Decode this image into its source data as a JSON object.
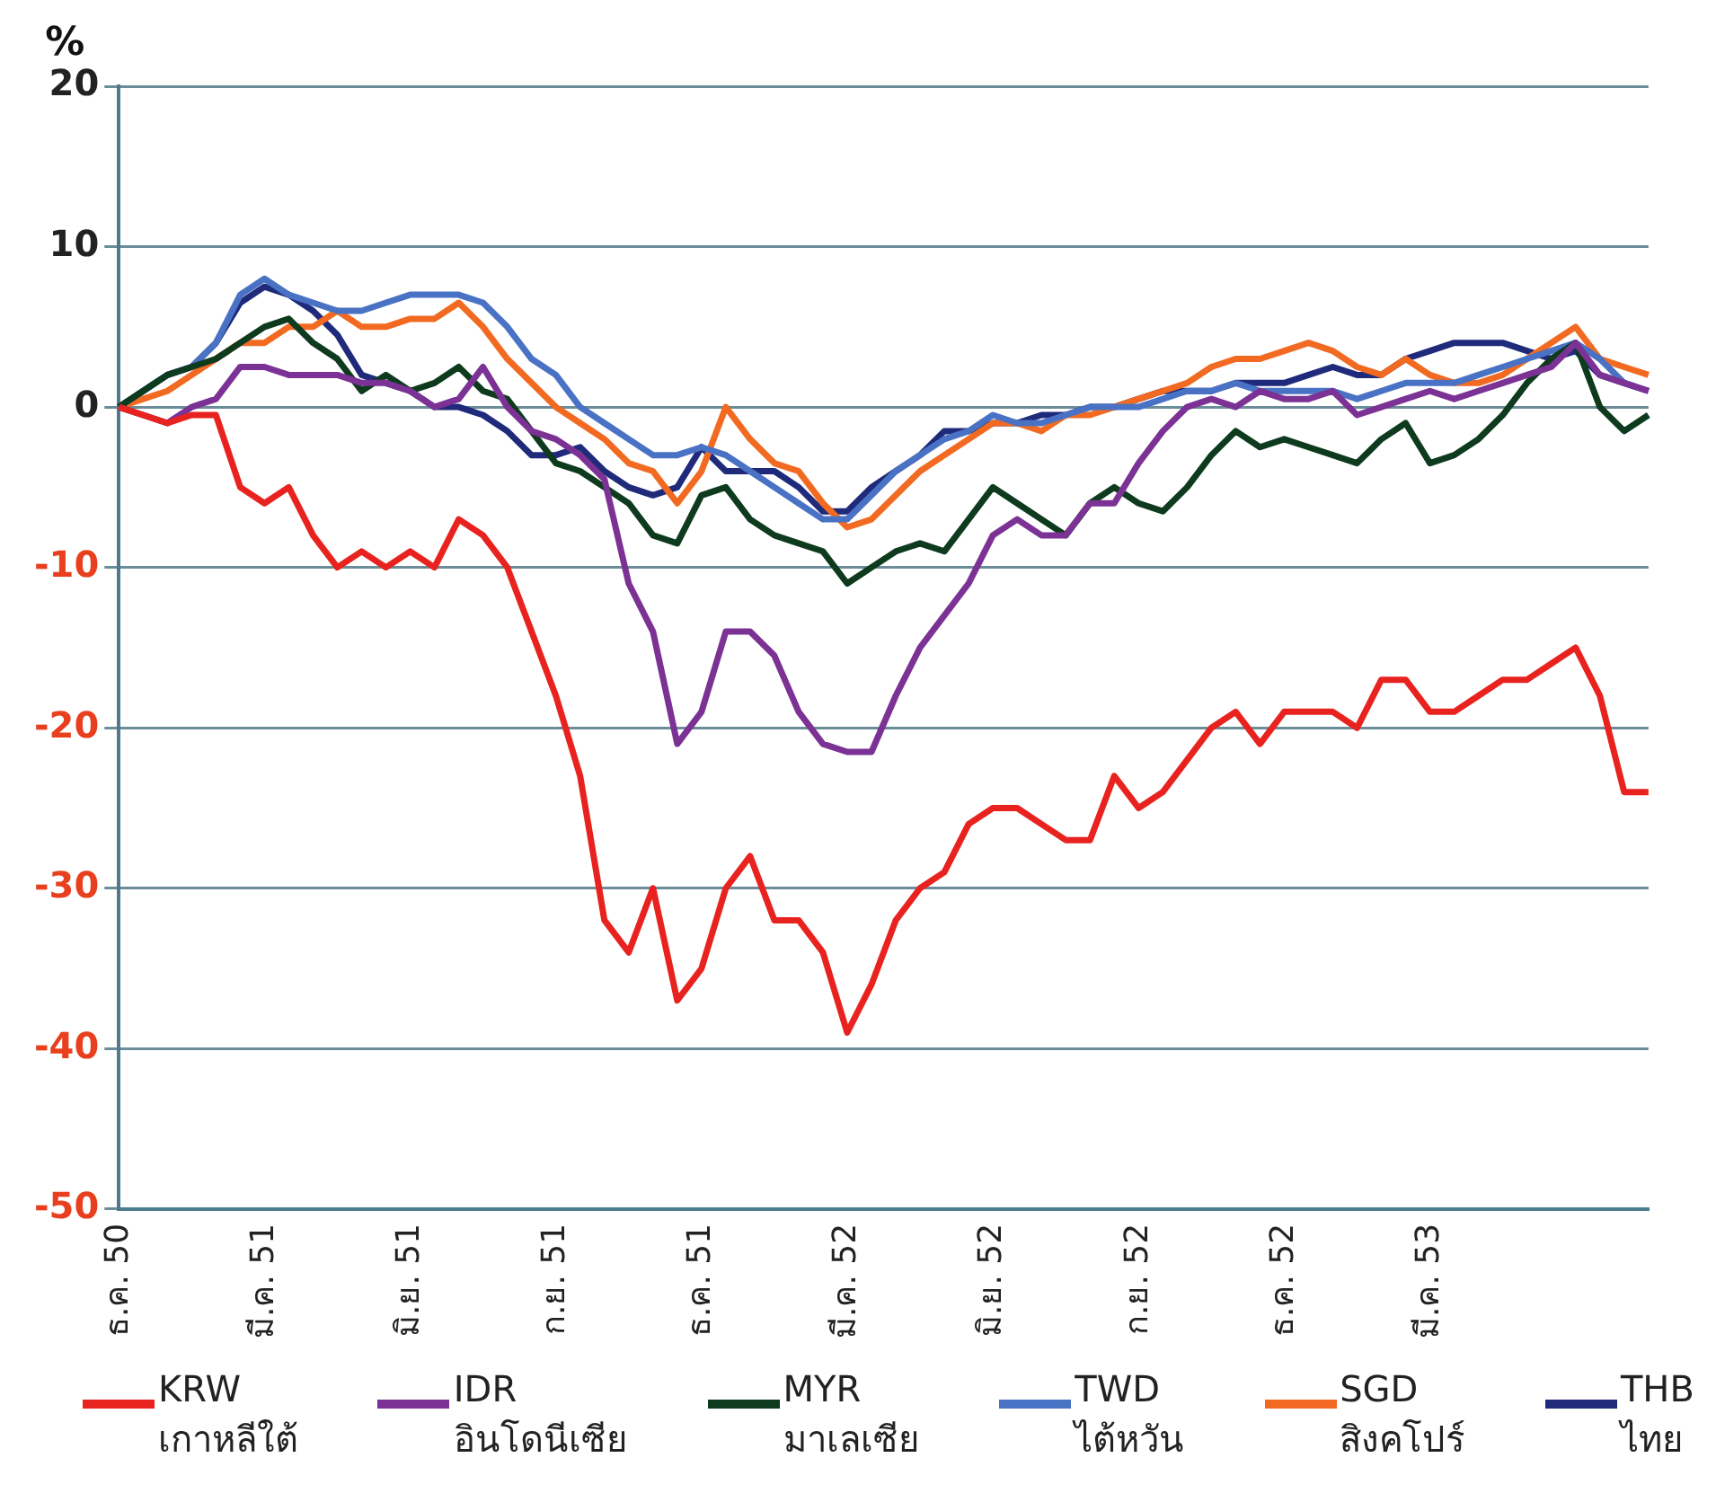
{
  "chart_data": {
    "type": "line",
    "ylabel": "%",
    "categories": [
      "ธ.ค. 50",
      null,
      null,
      null,
      null,
      null,
      "มี.ค. 51",
      null,
      null,
      null,
      null,
      null,
      "มิ.ย. 51",
      null,
      null,
      null,
      null,
      null,
      "ก.ย. 51",
      null,
      null,
      null,
      null,
      null,
      "ธ.ค. 51",
      null,
      null,
      null,
      null,
      null,
      "มี.ค. 52",
      null,
      null,
      null,
      null,
      null,
      "มิ.ย. 52",
      null,
      null,
      null,
      null,
      null,
      "ก.ย. 52",
      null,
      null,
      null,
      null,
      null,
      "ธ.ค. 52",
      null,
      null,
      null,
      null,
      null,
      "มี.ค. 53",
      null,
      null,
      null,
      null,
      null,
      null,
      null,
      null,
      null
    ],
    "series": [
      {
        "name": "KRW\nเกาหลีใต้",
        "color": "#e8231f",
        "values": [
          0,
          -0.5,
          -1,
          -0.5,
          -0.5,
          -5,
          -6,
          -5,
          -8,
          -10,
          -9,
          -10,
          -9,
          -10,
          -7,
          -8,
          -10,
          -14,
          -18,
          -23,
          -32,
          -34,
          -30,
          -37,
          -35,
          -30,
          -28,
          -32,
          -32,
          -34,
          -39,
          -36,
          -32,
          -30,
          -29,
          -26,
          -25,
          -25,
          -26,
          -27,
          -27,
          -23,
          -25,
          -24,
          -22,
          -20,
          -19,
          -21,
          -19,
          -19,
          -19,
          -20,
          -17,
          -17,
          -19,
          -19,
          -18,
          -17,
          -17,
          -16,
          -15,
          -18,
          -24,
          -24
        ]
      },
      {
        "name": "IDR\nอินโดนีเซีย",
        "color": "#7b3294",
        "values": [
          0,
          -0.5,
          -1,
          0,
          0.5,
          2.5,
          2.5,
          2,
          2,
          2,
          1.5,
          1.5,
          1,
          0,
          0.5,
          2.5,
          0,
          -1.5,
          -2,
          -3,
          -4.5,
          -11,
          -14,
          -21,
          -19,
          -14,
          -14,
          -15.5,
          -19,
          -21,
          -21.5,
          -21.5,
          -18,
          -15,
          -13,
          -11,
          -8,
          -7,
          -8,
          -8,
          -6,
          -6,
          -3.5,
          -1.5,
          0,
          0.5,
          0,
          1,
          0.5,
          0.5,
          1,
          -0.5,
          0,
          0.5,
          1,
          0.5,
          1,
          1.5,
          2,
          2.5,
          4,
          2,
          1.5,
          1
        ]
      },
      {
        "name": "MYR\nมาเลเซีย",
        "color": "#0e3a1e",
        "values": [
          0,
          1,
          2,
          2.5,
          3,
          4,
          5,
          5.5,
          4,
          3,
          1,
          2,
          1,
          1.5,
          2.5,
          1,
          0.5,
          -1.5,
          -3.5,
          -4,
          -5,
          -6,
          -8,
          -8.5,
          -5.5,
          -5,
          -7,
          -8,
          -8.5,
          -9,
          -11,
          -10,
          -9,
          -8.5,
          -9,
          -7,
          -5,
          -6,
          -7,
          -8,
          -6,
          -5,
          -6,
          -6.5,
          -5,
          -3,
          -1.5,
          -2.5,
          -2,
          -2.5,
          -3,
          -3.5,
          -2,
          -1,
          -3.5,
          -3,
          -2,
          -0.5,
          1.5,
          3,
          4,
          0,
          -1.5,
          -0.5
        ]
      },
      {
        "name": "TWD\nไต้หวัน",
        "color": "#4a72c4",
        "values": [
          0,
          1,
          2,
          2.5,
          4,
          7,
          8,
          7,
          6.5,
          6,
          6,
          6.5,
          7,
          7,
          7,
          6.5,
          5,
          3,
          2,
          0,
          -1,
          -2,
          -3,
          -3,
          -2.5,
          -3,
          -4,
          -5,
          -6,
          -7,
          -7,
          -5.5,
          -4,
          -3,
          -2,
          -1.5,
          -0.5,
          -1,
          -1,
          -0.5,
          0,
          0,
          0,
          0.5,
          1,
          1,
          1.5,
          1,
          1,
          1,
          1,
          0.5,
          1,
          1.5,
          1.5,
          1.5,
          2,
          2.5,
          3,
          3.5,
          4,
          3,
          1.5,
          1
        ]
      },
      {
        "name": "SGD\nสิงคโปร์",
        "color": "#f26a21",
        "values": [
          0,
          0.5,
          1,
          2,
          3,
          4,
          4,
          5,
          5,
          6,
          5,
          5,
          5.5,
          5.5,
          6.5,
          5,
          3,
          1.5,
          0,
          -1,
          -2,
          -3.5,
          -4,
          -6,
          -4,
          0,
          -2,
          -3.5,
          -4,
          -6,
          -7.5,
          -7,
          -5.5,
          -4,
          -3,
          -2,
          -1,
          -1,
          -1.5,
          -0.5,
          -0.5,
          0,
          0.5,
          1,
          1.5,
          2.5,
          3,
          3,
          3.5,
          4,
          3.5,
          2.5,
          2,
          3,
          2,
          1.5,
          1.5,
          2,
          3,
          4,
          5,
          3,
          2.5,
          2
        ]
      },
      {
        "name": "THB\nไทย",
        "color": "#1f2a7a",
        "values": [
          0,
          1,
          2,
          2.5,
          4,
          6.5,
          7.5,
          7,
          6,
          4.5,
          2,
          1.5,
          1,
          0,
          0,
          -0.5,
          -1.5,
          -3,
          -3,
          -2.5,
          -4,
          -5,
          -5.5,
          -5,
          -2.5,
          -4,
          -4,
          -4,
          -5,
          -6.5,
          -6.5,
          -5,
          -4,
          -3,
          -1.5,
          -1.5,
          -1,
          -1,
          -0.5,
          -0.5,
          0,
          0,
          0.5,
          1,
          1,
          1,
          1.5,
          1.5,
          1.5,
          2,
          2.5,
          2,
          2,
          3,
          3.5,
          4,
          4,
          4,
          3.5,
          3,
          3.5,
          2,
          1.5,
          1
        ]
      }
    ],
    "ylim": [
      -50,
      20
    ],
    "yticks": [
      -50,
      -40,
      -30,
      -20,
      -10,
      0,
      10,
      20
    ],
    "grid": "y",
    "legend": "bottom",
    "marker": "none",
    "line_style": "solid"
  }
}
